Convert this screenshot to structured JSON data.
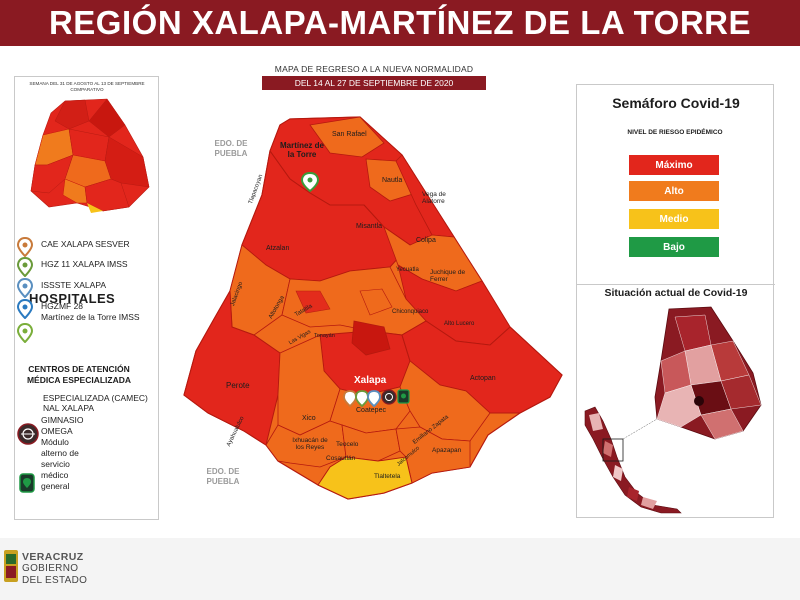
{
  "header": {
    "title": "REGIÓN XALAPA-MARTÍNEZ DE LA TORRE"
  },
  "map_header": {
    "line1": "MAPA DE REGRESO A LA NUEVA NORMALIDAD",
    "line2": "DEL 14 AL 27 DE SEPTIEMBRE DE 2020"
  },
  "left_panel": {
    "compare_label": "SEMANA DEL 31 DE AGOSTO AL 13 DE SEPTIEMBRE COMPARATIVO",
    "hospitals_title": "HOSPITALES",
    "hospitals": [
      {
        "name": "CAE XALAPA SESVER",
        "pin_color": "#c87a3a"
      },
      {
        "name": "HGZ 11 XALAPA IMSS",
        "pin_color": "#6a9a3a"
      },
      {
        "name": "ISSSTE XALAPA",
        "pin_color": "#5a8fc0"
      },
      {
        "name": "HGZMF 28",
        "name2": "Martínez de la Torre IMSS",
        "pin_color": "#2a7ac0"
      },
      {
        "name": "",
        "pin_color": "#7aae3a"
      }
    ],
    "centros_title": "CENTROS DE ATENCIÓN MÉDICA ESPECIALIZADA",
    "centros_overlay": "ESPECIALIZADA (CAMEC) NAL XALAPA",
    "gym": {
      "l1": "GIMNASIO OMEGA",
      "l2": "Módulo alterno de",
      "l3": "servicio médico general"
    }
  },
  "map": {
    "edo_puebla_1": "EDO. DE PUEBLA",
    "edo_puebla_2": "EDO. DE PUEBLA",
    "labels": {
      "martinez": "Martínez de la Torre",
      "san_rafael": "San Rafael",
      "nautla": "Nautla",
      "vega": "Vega de Alatorre",
      "misantla": "Misantla",
      "colipa": "Colipa",
      "yecuatla": "Yecuatla",
      "juchique": "Juchique de Ferrer",
      "atzalan": "Atzalan",
      "tlapacoyan": "Tlapacoyan",
      "jalacingo": "Jalacingo",
      "altotonga": "Altotonga",
      "las_vigas": "Las Vigas",
      "tatatila": "Tatatila",
      "chiconquiaco": "Chiconquiaco",
      "alto_lucero": "Alto Lucero",
      "tonayan": "Tonayán",
      "perote": "Perote",
      "xalapa": "Xalapa",
      "actopan": "Actopan",
      "coatepec": "Coatepec",
      "xico": "Xico",
      "emiliano": "Emiliano Zapata",
      "ayahualulco": "Ayahualulco",
      "ixhuacan": "Ixhuacán de los Reyes",
      "teocelo": "Teocelo",
      "cosautlan": "Cosautlán",
      "apazapan": "Apazapan",
      "jalcomulco": "Jalcomulco",
      "tlaltetela": "Tlaltetela"
    }
  },
  "semaforo": {
    "title": "Semáforo Covid-19",
    "nivel_title": "NIVEL DE RIESGO EPIDÉMICO",
    "levels": [
      {
        "label": "Máximo",
        "color": "#e2261c"
      },
      {
        "label": "Alto",
        "color": "#f07b1d"
      },
      {
        "label": "Medio",
        "color": "#f7c21a"
      },
      {
        "label": "Bajo",
        "color": "#1f9a45"
      }
    ]
  },
  "situacion": {
    "title": "Situación actual de Covid-19"
  },
  "footer": {
    "line1": "VERACRUZ",
    "line2": "GOBIERNO",
    "line3": "DEL ESTADO"
  },
  "colors": {
    "brand": "#8a1a22",
    "max": "#e2261c",
    "alto": "#f07b1d",
    "medio": "#f7c21a",
    "bajo": "#1f9a45"
  }
}
